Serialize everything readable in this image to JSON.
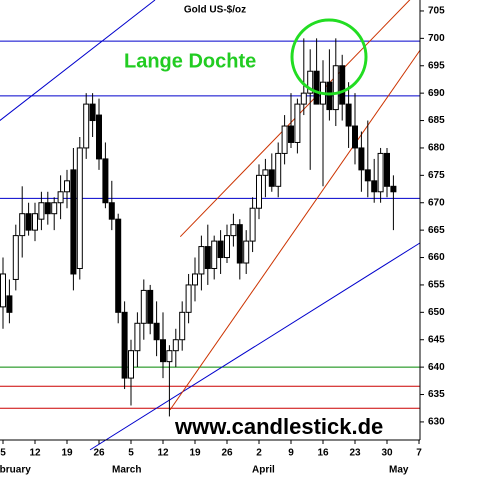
{
  "chart_data": {
    "type": "candlestick",
    "title": "Gold US-$/oz",
    "annotation": "Lange Dochte",
    "watermark": "www.candlestick.de",
    "months": [
      "February",
      "March",
      "April",
      "May"
    ],
    "categories": [
      "5",
      null,
      null,
      null,
      null,
      "12",
      null,
      null,
      null,
      null,
      "19",
      null,
      null,
      null,
      null,
      "26",
      null,
      null,
      null,
      null,
      "5",
      null,
      null,
      null,
      null,
      "12",
      null,
      null,
      null,
      null,
      "19",
      null,
      null,
      null,
      null,
      "26",
      null,
      null,
      null,
      null,
      "2",
      null,
      null,
      null,
      null,
      "9",
      null,
      null,
      null,
      null,
      "16",
      null,
      null,
      null,
      null,
      "23",
      null,
      null,
      null,
      null,
      "30",
      null,
      null,
      null,
      null,
      "7"
    ],
    "open": [
      651,
      653,
      656,
      664,
      668,
      665,
      667,
      670,
      668,
      670,
      672,
      676,
      658,
      680,
      688,
      686,
      678,
      670,
      667,
      650,
      638,
      643,
      648,
      654,
      648,
      645,
      641,
      643,
      645,
      650,
      655,
      657,
      662,
      658,
      663,
      660,
      664,
      666,
      659,
      663,
      669,
      675,
      676,
      673,
      679,
      684,
      681,
      688,
      690,
      694,
      688,
      692,
      687,
      695,
      688,
      684,
      680,
      676,
      674,
      672,
      679,
      673,
      null,
      null,
      null,
      null
    ],
    "high": [
      660,
      656,
      666,
      673,
      670,
      670,
      672,
      672,
      671,
      675,
      676,
      680,
      682,
      690,
      690,
      689,
      681,
      674,
      668,
      652,
      645,
      650,
      656,
      655,
      652,
      650,
      644,
      647,
      652,
      657,
      660,
      664,
      666,
      664,
      665,
      666,
      668,
      667,
      665,
      671,
      677,
      678,
      679,
      681,
      686,
      690,
      689,
      700,
      698,
      700,
      696,
      698,
      700,
      697,
      692,
      690,
      683,
      685,
      678,
      680,
      680,
      675,
      null,
      null,
      null,
      null
    ],
    "low": [
      647,
      648,
      654,
      660,
      664,
      663,
      665,
      666,
      665,
      667,
      669,
      654,
      656,
      678,
      682,
      676,
      669,
      665,
      648,
      636,
      633,
      640,
      645,
      646,
      642,
      638,
      631,
      640,
      643,
      648,
      652,
      654,
      655,
      656,
      657,
      659,
      662,
      656,
      657,
      661,
      667,
      671,
      672,
      671,
      677,
      680,
      679,
      686,
      676,
      688,
      673,
      685,
      684,
      685,
      680,
      677,
      672,
      671,
      670,
      670,
      671,
      665,
      null,
      null,
      null,
      null
    ],
    "close": [
      657,
      650,
      664,
      668,
      665,
      668,
      670,
      668,
      670,
      672,
      674,
      657,
      680,
      688,
      685,
      678,
      670,
      667,
      650,
      638,
      643,
      648,
      654,
      648,
      645,
      641,
      643,
      645,
      650,
      655,
      657,
      662,
      658,
      663,
      660,
      664,
      666,
      659,
      663,
      669,
      675,
      676,
      673,
      679,
      684,
      681,
      688,
      690,
      694,
      688,
      692,
      687,
      695,
      688,
      684,
      680,
      676,
      674,
      672,
      679,
      673,
      672,
      null,
      null,
      null,
      null
    ],
    "up_color": "#ffffff",
    "down_color": "#000000",
    "hlines": [
      {
        "value": 699.5,
        "color": "#0000cc"
      },
      {
        "value": 689.5,
        "color": "#0000cc"
      },
      {
        "value": 670.8,
        "color": "#0000cc"
      },
      {
        "value": 640,
        "color": "#008800"
      },
      {
        "value": 636.5,
        "color": "#cc0000"
      },
      {
        "value": 632.5,
        "color": "#cc0000"
      }
    ],
    "trend_lines": [
      {
        "color": "#0000cc",
        "points": [
          [
            -0.5,
            685
          ],
          [
            23.75,
            707
          ]
        ]
      },
      {
        "color": "#0000cc",
        "points": [
          [
            13.6,
            624.9
          ],
          [
            65.2,
            662.7
          ]
        ]
      },
      {
        "color": "#cc3300",
        "points": [
          [
            27.7,
            663.8
          ],
          [
            65.2,
            709
          ]
        ]
      },
      {
        "color": "#cc3300",
        "points": [
          [
            26.1,
            632.2
          ],
          [
            65.2,
            697.9
          ]
        ]
      }
    ],
    "ylim": [
      626.7,
      707
    ],
    "yticks": [
      630,
      635,
      640,
      645,
      650,
      655,
      660,
      665,
      670,
      675,
      680,
      685,
      690,
      695,
      700,
      705
    ]
  }
}
